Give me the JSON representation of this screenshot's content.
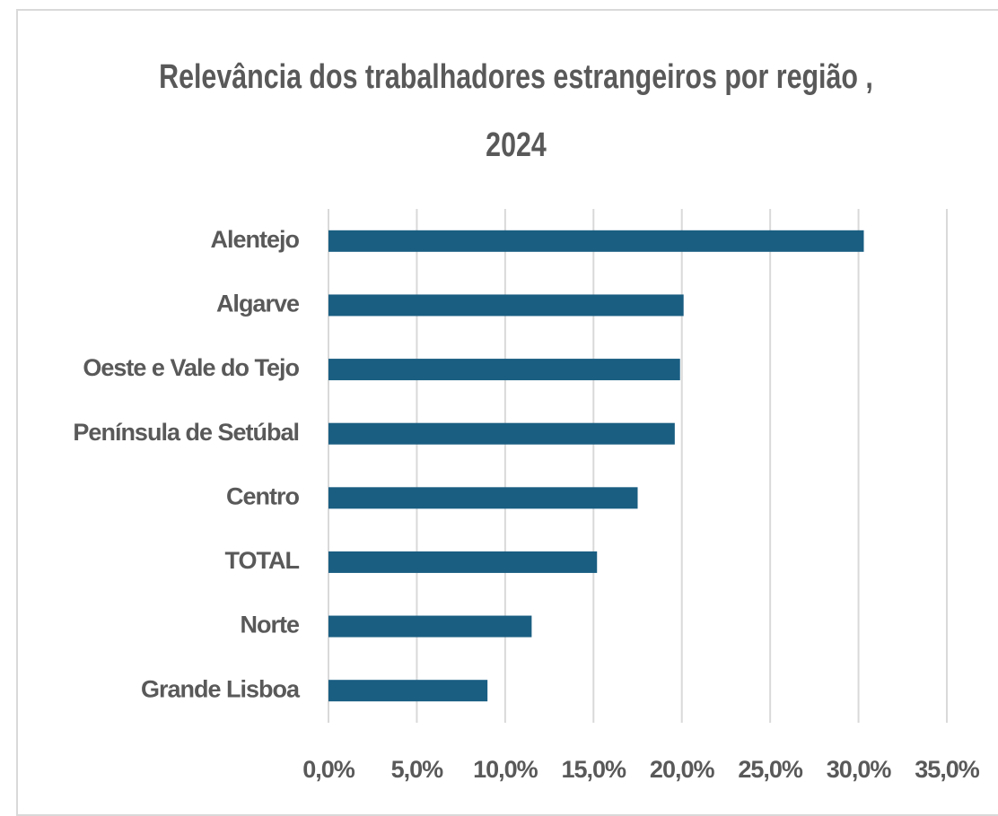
{
  "chart_data": {
    "type": "bar",
    "orientation": "horizontal",
    "title": "Relevância dos trabalhadores  estrangeiros por região , 2024",
    "categories": [
      "Alentejo",
      "Algarve",
      "Oeste e Vale do Tejo",
      "Península de Setúbal",
      "Centro",
      "TOTAL",
      "Norte",
      "Grande Lisboa"
    ],
    "values": [
      30.3,
      20.1,
      19.9,
      19.6,
      17.5,
      15.2,
      11.5,
      9.0
    ],
    "color": "#1a5e82",
    "xlim": [
      0,
      35
    ],
    "xticks": [
      {
        "value": 0,
        "label": "0,0%"
      },
      {
        "value": 5,
        "label": "5,0%"
      },
      {
        "value": 10,
        "label": "10,0%"
      },
      {
        "value": 15,
        "label": "15,0%"
      },
      {
        "value": 20,
        "label": "20,0%"
      },
      {
        "value": 25,
        "label": "25,0%"
      },
      {
        "value": 30,
        "label": "30,0%"
      },
      {
        "value": 35,
        "label": "35,0%"
      }
    ],
    "grid": true
  }
}
